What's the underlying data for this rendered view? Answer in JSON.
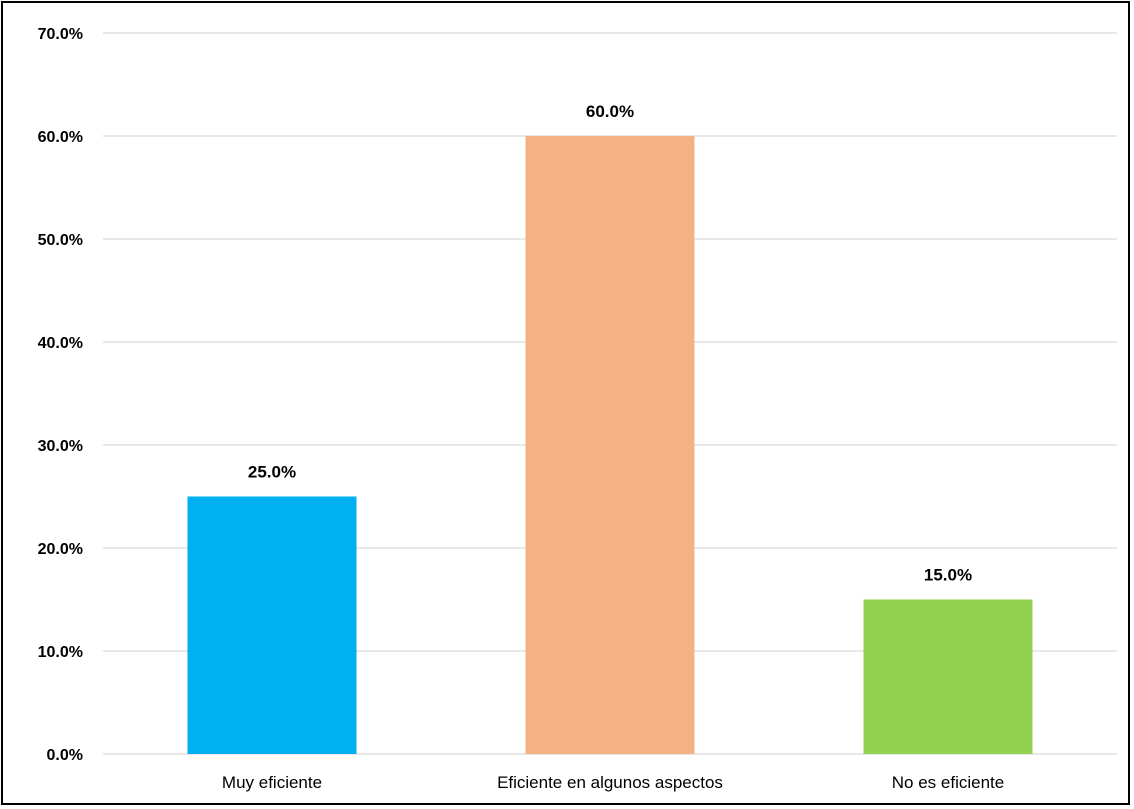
{
  "chart_data": {
    "type": "bar",
    "categories": [
      "Muy eficiente",
      "Eficiente en algunos aspectos",
      "No es eficiente"
    ],
    "values": [
      25.0,
      60.0,
      15.0
    ],
    "data_labels": [
      "25.0%",
      "60.0%",
      "15.0%"
    ],
    "colors": [
      "#00b0f0",
      "#f4b183",
      "#92d050"
    ],
    "ylim": [
      0,
      70
    ],
    "y_ticks": [
      0,
      10,
      20,
      30,
      40,
      50,
      60,
      70
    ],
    "y_tick_labels": [
      "0.0%",
      "10.0%",
      "20.0%",
      "30.0%",
      "40.0%",
      "50.0%",
      "60.0%",
      "70.0%"
    ],
    "grid": true,
    "legend": "none"
  }
}
